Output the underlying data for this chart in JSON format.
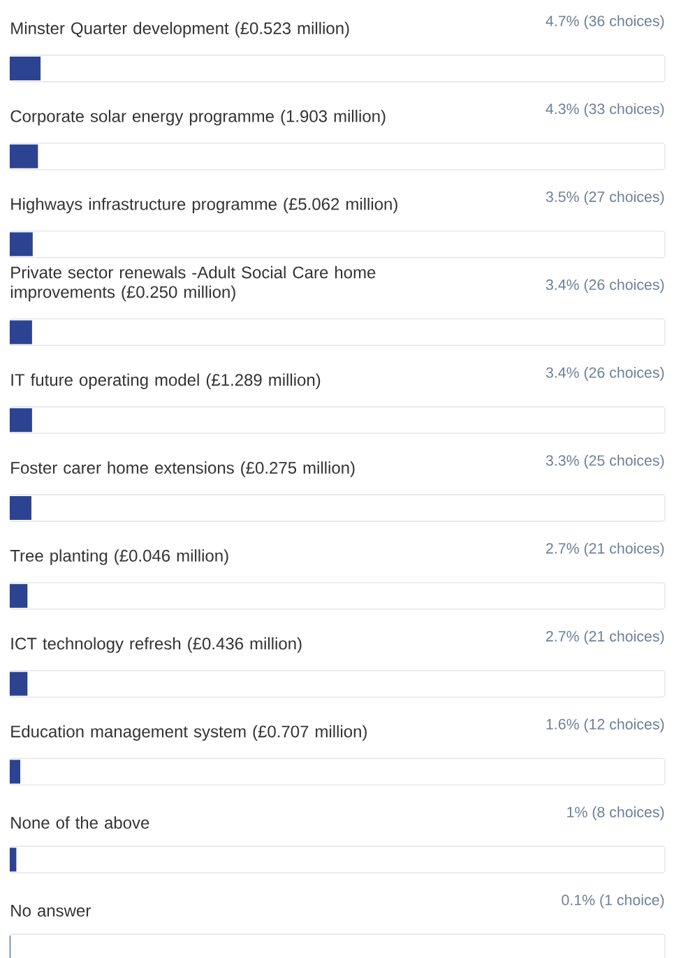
{
  "chart_data": {
    "type": "bar",
    "orientation": "horizontal",
    "categories": [
      "Minster Quarter development (£0.523 million)",
      "Corporate solar energy programme (1.903 million)",
      "Highways infrastructure programme (£5.062 million)",
      "Private sector renewals -Adult Social Care home improvements (£0.250 million)",
      "IT future operating model (£1.289 million)",
      "Foster carer home extensions (£0.275 million)",
      "Tree planting (£0.046 million)",
      "ICT technology refresh (£0.436 million)",
      "Education management system (£0.707 million)",
      "None of the above",
      "No answer"
    ],
    "values": [
      4.7,
      4.3,
      3.5,
      3.4,
      3.4,
      3.3,
      2.7,
      2.7,
      1.6,
      1,
      0.1
    ],
    "value_labels": [
      "4.7% (36 choices)",
      "4.3% (33 choices)",
      "3.5% (27 choices)",
      "3.4% (26 choices)",
      "3.4% (26 choices)",
      "3.3% (25 choices)",
      "2.7% (21 choices)",
      "2.7% (21 choices)",
      "1.6% (12 choices)",
      "1% (8 choices)",
      "0.1% (1 choice)"
    ],
    "color": "#2b4390",
    "xlim": [
      0,
      100
    ]
  }
}
